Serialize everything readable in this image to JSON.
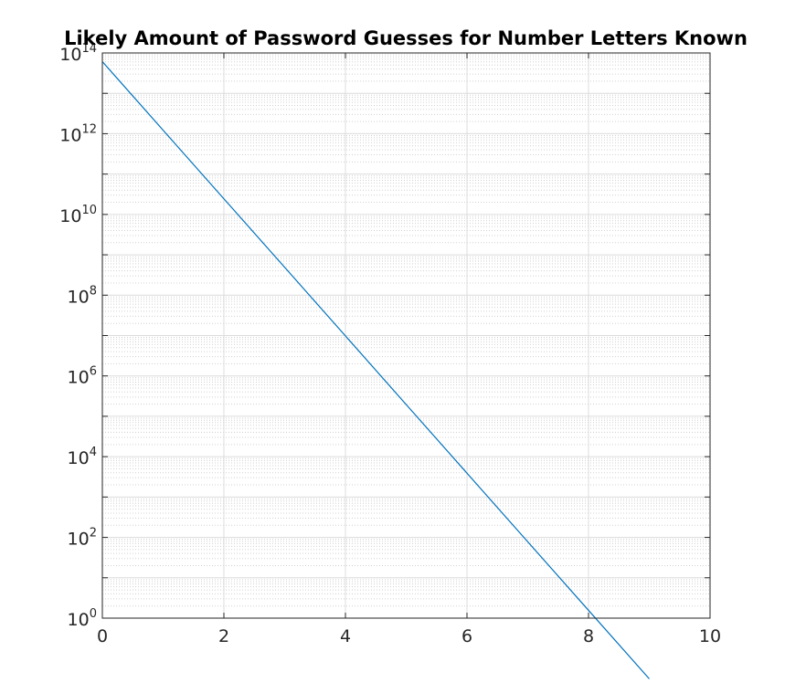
{
  "chart_data": {
    "type": "line",
    "title": "Likely Amount of Password Guesses for Number Letters Known",
    "xlabel": "",
    "ylabel": "",
    "xlim": [
      0,
      10
    ],
    "ylim_exp": [
      0,
      14
    ],
    "yscale": "log",
    "grid": true,
    "minor_grid": true,
    "xticks": [
      "0",
      "2",
      "4",
      "6",
      "8",
      "10"
    ],
    "xtick_values": [
      0,
      2,
      4,
      6,
      8,
      10
    ],
    "yticks": [
      {
        "base": "10",
        "exp": "0"
      },
      {
        "base": "10",
        "exp": "2"
      },
      {
        "base": "10",
        "exp": "4"
      },
      {
        "base": "10",
        "exp": "6"
      },
      {
        "base": "10",
        "exp": "8"
      },
      {
        "base": "10",
        "exp": "10"
      },
      {
        "base": "10",
        "exp": "12"
      },
      {
        "base": "10",
        "exp": "14"
      }
    ],
    "ytick_exps": [
      0,
      2,
      4,
      6,
      8,
      10,
      12,
      14
    ],
    "series": [
      {
        "color": "#0072bd",
        "x": [
          0,
          1,
          2,
          3,
          4,
          5,
          6,
          7,
          8,
          9
        ],
        "y": [
          61000000000000.0,
          1220000000000.0,
          24400000000.0,
          490000000.0,
          9800000.0,
          195000.0,
          3900.0,
          78,
          1.56,
          0.0313
        ]
      }
    ]
  }
}
